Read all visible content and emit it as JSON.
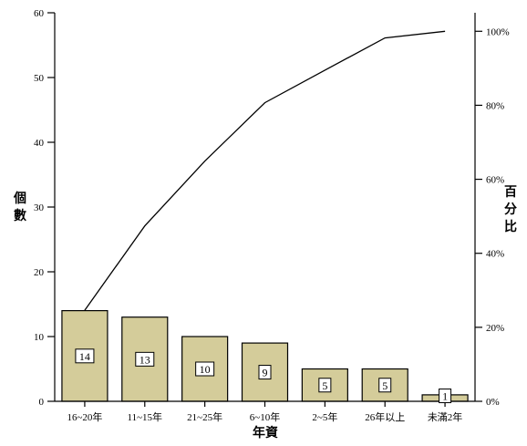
{
  "chart_data": {
    "type": "pareto",
    "title": "",
    "xlabel": "年資",
    "ylabel": "個數",
    "y2label": "百分比",
    "categories": [
      "16~20年",
      "11~15年",
      "21~25年",
      "6~10年",
      "2~5年",
      "26年以上",
      "未滿2年"
    ],
    "values": [
      14,
      13,
      10,
      9,
      5,
      5,
      1
    ],
    "cumulative_percent": [
      24.6,
      47.4,
      64.9,
      80.7,
      89.5,
      98.2,
      100
    ],
    "ylim": [
      0,
      60
    ],
    "y2lim": [
      0,
      105
    ],
    "yticks": [
      0,
      10,
      20,
      30,
      40,
      50,
      60
    ],
    "y2ticks": [
      "0%",
      "20%",
      "40%",
      "60%",
      "80%",
      "100%"
    ],
    "y2tick_values": [
      0,
      20,
      40,
      60,
      80,
      100
    ],
    "bar_color": "#d4cc9a",
    "line_color": "#000000",
    "grid": false
  }
}
